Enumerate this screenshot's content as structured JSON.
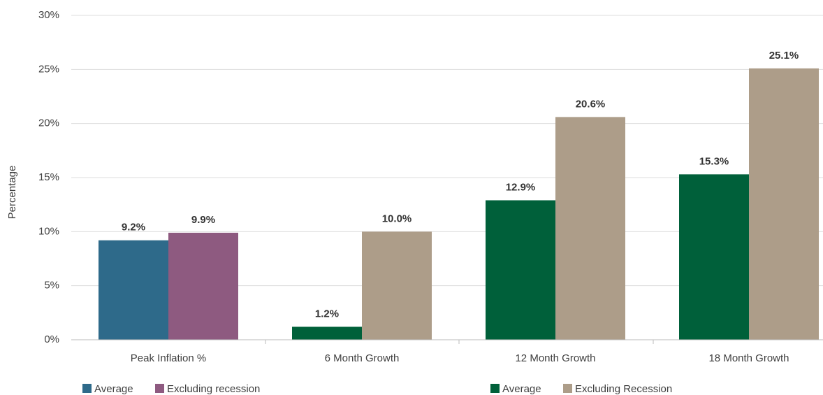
{
  "chart_data": {
    "type": "bar",
    "y_label": "Percentage",
    "categories": [
      "Peak Inflation %",
      "6 Month Growth",
      "12 Month Growth",
      "18 Month Growth"
    ],
    "series": [
      {
        "colors": [
          "#2e6a8a",
          "#00603a",
          "#00603a",
          "#00603a"
        ],
        "values": [
          9.2,
          1.2,
          12.9,
          15.3
        ],
        "value_labels": [
          "9.2%",
          "1.2%",
          "12.9%",
          "15.3%"
        ]
      },
      {
        "colors": [
          "#8e5a80",
          "#ad9d89",
          "#ad9d89",
          "#ad9d89"
        ],
        "values": [
          9.9,
          10.0,
          20.6,
          25.1
        ],
        "value_labels": [
          "9.9%",
          "10.0%",
          "20.6%",
          "25.1%"
        ]
      }
    ],
    "legend": [
      {
        "name": "Average",
        "color": "#2e6a8a"
      },
      {
        "name": "Excluding recession",
        "color": "#8e5a80"
      },
      {
        "name": "Average",
        "color": "#00603a"
      },
      {
        "name": "Excluding Recession",
        "color": "#ad9d89"
      }
    ],
    "ylim": [
      0,
      30
    ],
    "yticks": [
      {
        "value": 0,
        "label": "0%"
      },
      {
        "value": 5,
        "label": "5%"
      },
      {
        "value": 10,
        "label": "10%"
      },
      {
        "value": 15,
        "label": "15%"
      },
      {
        "value": 20,
        "label": "20%"
      },
      {
        "value": 25,
        "label": "25%"
      },
      {
        "value": 30,
        "label": "30%"
      }
    ],
    "grid": true
  }
}
